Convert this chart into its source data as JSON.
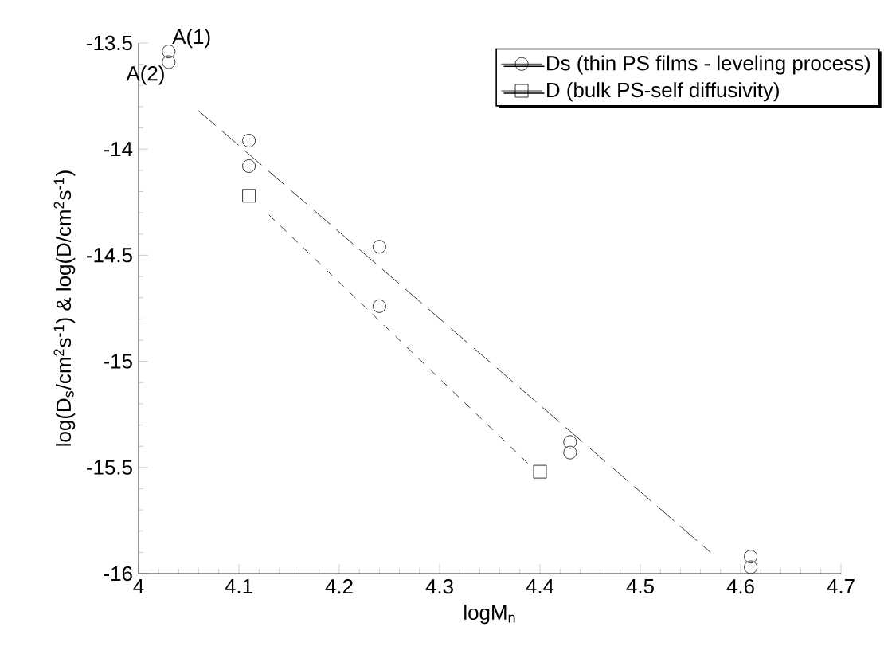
{
  "chart_data": {
    "type": "scatter",
    "xlabel": "logM$_{n}$",
    "ylabel": "log(D$_{s}$/cm$^{2}$s$^{-1}$) & log(D/cm$^{2}$s$^{-1}$)",
    "xlim": [
      4,
      4.7
    ],
    "ylim": [
      -16,
      -13.5
    ],
    "xticks": [
      4,
      4.1,
      4.2,
      4.3,
      4.4,
      4.5,
      4.6,
      4.7
    ],
    "yticks": [
      -16,
      -15.5,
      -15,
      -14.5,
      -14,
      -13.5
    ],
    "grid": false,
    "legend": "top right",
    "series": [
      {
        "name": "Ds (thin PS films - leveling process)",
        "marker": "circle",
        "color": "#000000",
        "x": [
          4.03,
          4.03,
          4.11,
          4.11,
          4.24,
          4.24,
          4.43,
          4.43,
          4.61,
          4.61
        ],
        "values": [
          -13.54,
          -13.59,
          -13.96,
          -14.08,
          -14.46,
          -14.74,
          -15.38,
          -15.43,
          -15.92,
          -15.97
        ]
      },
      {
        "name": "D (bulk PS-self diffusivity)",
        "marker": "square",
        "color": "#000000",
        "x": [
          4.11,
          4.4
        ],
        "values": [
          -14.22,
          -15.52
        ]
      },
      {
        "type": "line",
        "line_style": "dashed",
        "color": "#000000",
        "x": [
          4.06,
          4.57
        ],
        "values": [
          -13.82,
          -15.9
        ]
      },
      {
        "type": "line",
        "line_style": "dotted",
        "color": "#000000",
        "x": [
          4.13,
          4.39
        ],
        "values": [
          -14.31,
          -15.49
        ]
      }
    ],
    "annotations": [
      {
        "text": "A(1)",
        "x": 4.03,
        "y": -13.54
      },
      {
        "text": "A(2)",
        "x": 4.03,
        "y": -13.59
      }
    ]
  }
}
